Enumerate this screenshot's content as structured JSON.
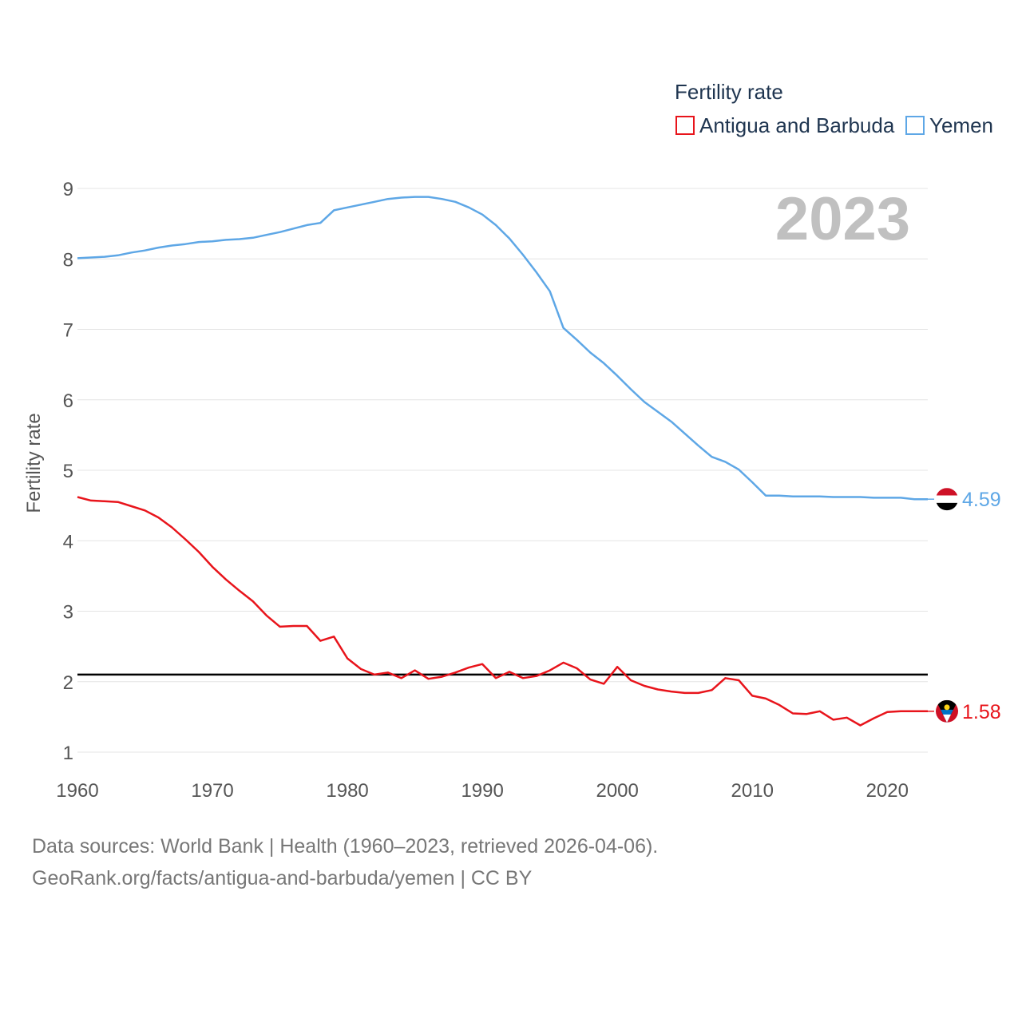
{
  "chart_data": {
    "type": "line",
    "title": "Fertility rate",
    "ylabel": "Fertility rate",
    "xlabel": "",
    "year_label": "2023",
    "xlim": [
      1960,
      2023
    ],
    "ylim": [
      0.85,
      9.1
    ],
    "x_ticks": [
      1960,
      1970,
      1980,
      1990,
      2000,
      2010,
      2020
    ],
    "y_ticks": [
      1,
      2,
      3,
      4,
      5,
      6,
      7,
      8,
      9
    ],
    "grid": true,
    "legend_position": "top-right",
    "reference_line": {
      "value": 2.1,
      "color": "#000000"
    },
    "x": [
      1960,
      1961,
      1962,
      1963,
      1964,
      1965,
      1966,
      1967,
      1968,
      1969,
      1970,
      1971,
      1972,
      1973,
      1974,
      1975,
      1976,
      1977,
      1978,
      1979,
      1980,
      1981,
      1982,
      1983,
      1984,
      1985,
      1986,
      1987,
      1988,
      1989,
      1990,
      1991,
      1992,
      1993,
      1994,
      1995,
      1996,
      1997,
      1998,
      1999,
      2000,
      2001,
      2002,
      2003,
      2004,
      2005,
      2006,
      2007,
      2008,
      2009,
      2010,
      2011,
      2012,
      2013,
      2014,
      2015,
      2016,
      2017,
      2018,
      2019,
      2020,
      2021,
      2022,
      2023
    ],
    "series": [
      {
        "name": "Antigua and Barbuda",
        "color": "#e8141b",
        "end_label": "1.58",
        "values": [
          4.62,
          4.57,
          4.56,
          4.55,
          4.49,
          4.43,
          4.33,
          4.19,
          4.02,
          3.84,
          3.63,
          3.45,
          3.29,
          3.14,
          2.94,
          2.78,
          2.79,
          2.79,
          2.58,
          2.64,
          2.33,
          2.18,
          2.1,
          2.13,
          2.05,
          2.16,
          2.04,
          2.07,
          2.13,
          2.2,
          2.25,
          2.05,
          2.14,
          2.05,
          2.08,
          2.16,
          2.27,
          2.19,
          2.03,
          1.97,
          2.21,
          2.02,
          1.94,
          1.89,
          1.86,
          1.84,
          1.84,
          1.88,
          2.05,
          2.02,
          1.8,
          1.76,
          1.67,
          1.55,
          1.54,
          1.58,
          1.46,
          1.49,
          1.38,
          1.48,
          1.57,
          1.58,
          1.58,
          1.58
        ]
      },
      {
        "name": "Yemen",
        "color": "#5ea7e6",
        "end_label": "4.59",
        "values": [
          8.01,
          8.02,
          8.03,
          8.05,
          8.09,
          8.12,
          8.16,
          8.19,
          8.21,
          8.24,
          8.25,
          8.27,
          8.28,
          8.3,
          8.34,
          8.38,
          8.43,
          8.48,
          8.51,
          8.69,
          8.73,
          8.77,
          8.81,
          8.85,
          8.87,
          8.88,
          8.88,
          8.85,
          8.81,
          8.73,
          8.63,
          8.48,
          8.29,
          8.06,
          7.81,
          7.54,
          7.02,
          6.85,
          6.67,
          6.52,
          6.34,
          6.15,
          5.97,
          5.83,
          5.69,
          5.52,
          5.35,
          5.19,
          5.12,
          5.01,
          4.83,
          4.64,
          4.64,
          4.63,
          4.63,
          4.63,
          4.62,
          4.62,
          4.62,
          4.61,
          4.61,
          4.61,
          4.59,
          4.59
        ]
      }
    ]
  },
  "source": {
    "line1": "Data sources: World Bank | Health (1960–2023, retrieved 2026-04-06).",
    "line2": "GeoRank.org/facts/antigua-and-barbuda/yemen | CC BY"
  }
}
